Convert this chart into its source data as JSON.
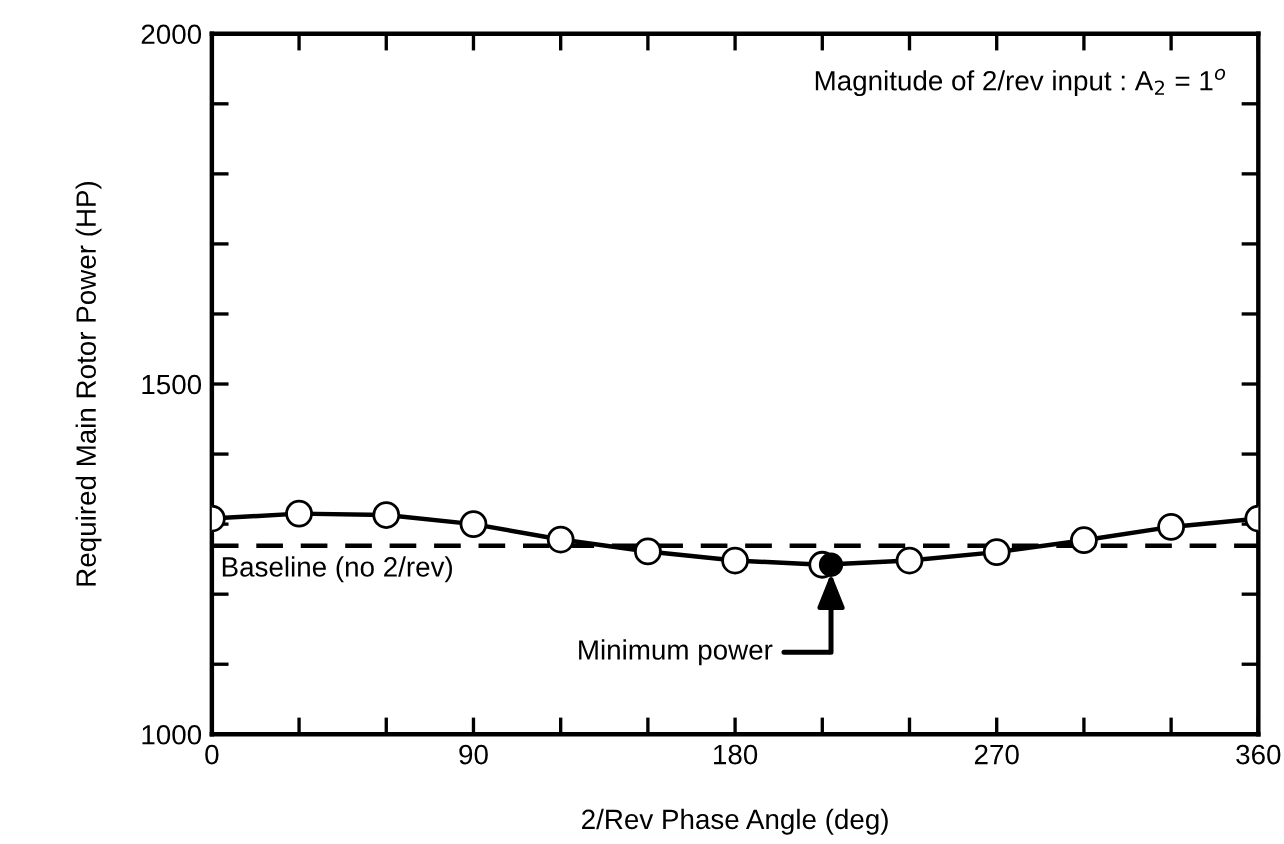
{
  "chart_data": {
    "type": "line",
    "xlabel": "2/Rev Phase Angle (deg)",
    "ylabel": "Required Main Rotor Power (HP)",
    "x": [
      0,
      30,
      60,
      90,
      120,
      150,
      180,
      210,
      240,
      270,
      300,
      330,
      360
    ],
    "series": [
      {
        "color": "#000000",
        "marker": "circle",
        "values": [
          1308,
          1315,
          1313,
          1300,
          1278,
          1261,
          1248,
          1242,
          1248,
          1260,
          1277,
          1296,
          1308
        ]
      },
      {
        "type": "scatter",
        "color": "#000000",
        "marker": "circle",
        "x": [
          213
        ],
        "values": [
          1242
        ]
      }
    ],
    "xlim": [
      0,
      360
    ],
    "ylim": [
      1000,
      2000
    ],
    "xticks": [
      0,
      {
        "value": 30,
        "label": null
      },
      {
        "value": 60,
        "label": null
      },
      90,
      {
        "value": 120,
        "label": null
      },
      {
        "value": 150,
        "label": null
      },
      180,
      {
        "value": 210,
        "label": null
      },
      {
        "value": 240,
        "label": null
      },
      270,
      {
        "value": 300,
        "label": null
      },
      {
        "value": 330,
        "label": null
      },
      360
    ],
    "yticks": [
      1000,
      {
        "value": 1100,
        "label": null
      },
      {
        "value": 1200,
        "label": null
      },
      {
        "value": 1300,
        "label": null
      },
      {
        "value": 1400,
        "label": null
      },
      1500,
      {
        "value": 1600,
        "label": null
      },
      {
        "value": 1700,
        "label": null
      },
      {
        "value": 1800,
        "label": null
      },
      {
        "value": 1900,
        "label": null
      },
      2000
    ],
    "ref_lines": [
      {
        "axis": "y",
        "value": 1269,
        "label": "Baseline (no 2/rev)",
        "color": "#000000",
        "line_style": "dashed"
      }
    ],
    "annotations": [
      "Magnitude of 2/rev input : A$_{2}$ = 1$^{o}$",
      {
        "text": "Minimum power",
        "x": 213,
        "y": 1242
      }
    ],
    "grid": false,
    "legend": false
  }
}
